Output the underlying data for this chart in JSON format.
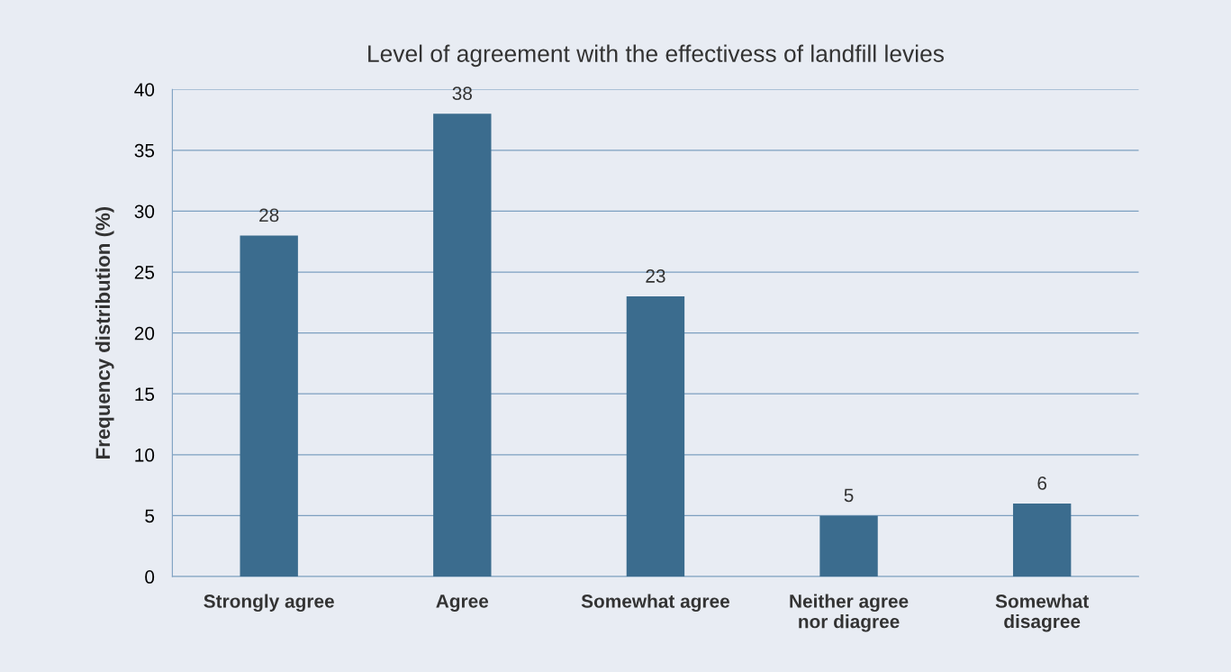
{
  "chart_data": {
    "type": "bar",
    "title": "Level of agreement with the effectivess of landfill levies",
    "ylabel": "Frequency distribution (%)",
    "categories": [
      "Strongly agree",
      "Agree",
      "Somewhat agree",
      "Neither agree\nnor diagree",
      "Somewhat\ndisagree"
    ],
    "values": [
      28,
      38,
      23,
      5,
      6
    ],
    "color": "#3b6c8e",
    "ylim": [
      0,
      40
    ],
    "yticks": [
      0,
      5,
      10,
      15,
      20,
      25,
      30,
      35,
      40
    ],
    "grid": "y",
    "data_labels": true
  }
}
